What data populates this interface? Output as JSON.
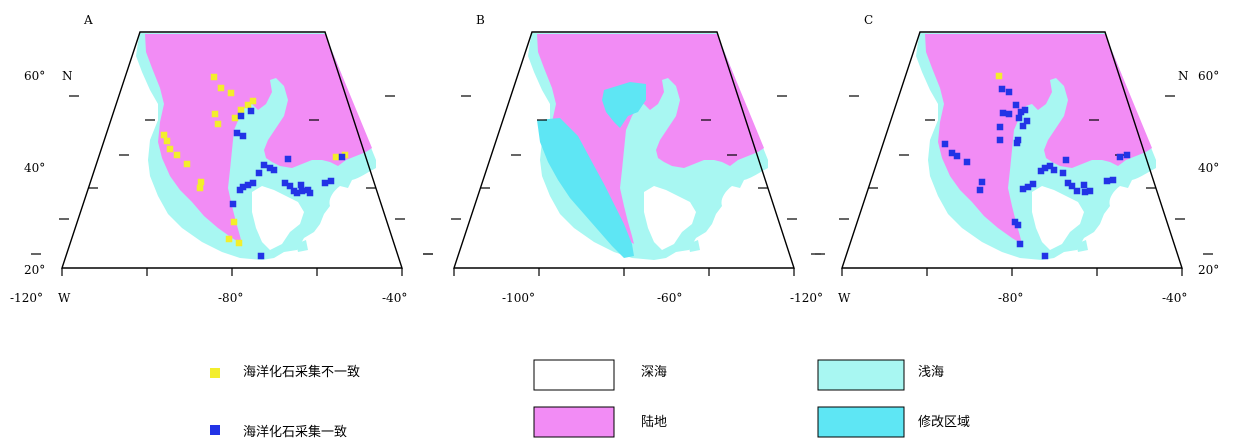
{
  "colors": {
    "land": "#f28cf5",
    "shallow_sea": "#a8f7f2",
    "modified_region": "#5ee6f4",
    "deep_sea": "#ffffff",
    "inconsistent_marker": "#f3ee2c",
    "consistent_marker": "#2233e6",
    "outline": "#000000"
  },
  "maps": [
    {
      "id": "A",
      "letter": "A",
      "lat_labels_left": [
        "60°",
        "40°",
        "20°"
      ],
      "lat_labels_right": [],
      "lat_suffix_left": "N",
      "lat_suffix_right": "",
      "lon_labels": [
        "-80°",
        "-40°"
      ],
      "lon_start_label": "-120°",
      "lon_start_suffix": "W",
      "markers": "inconsistent+consistent"
    },
    {
      "id": "B",
      "letter": "B",
      "lat_labels_left": [],
      "lat_labels_right": [],
      "lat_suffix_left": "",
      "lat_suffix_right": "",
      "lon_labels": [
        "-100°",
        "-60°"
      ],
      "lon_start_label": "",
      "lon_start_suffix": "",
      "markers": "none"
    },
    {
      "id": "C",
      "letter": "C",
      "lat_labels_left": [],
      "lat_labels_right": [
        "60°",
        "40°",
        "20°"
      ],
      "lat_suffix_left": "",
      "lat_suffix_right": "N",
      "lon_labels": [
        "-80°",
        "-40°"
      ],
      "lon_start_label": "-120°",
      "lon_start_suffix": "W",
      "markers": "consistent"
    }
  ],
  "legend": {
    "inconsistent": "海洋化石采集不一致",
    "consistent": "海洋化石采集一致",
    "deep_sea": "深海",
    "land": "陆地",
    "shallow_sea": "浅海",
    "modified_region": "修改区域"
  }
}
